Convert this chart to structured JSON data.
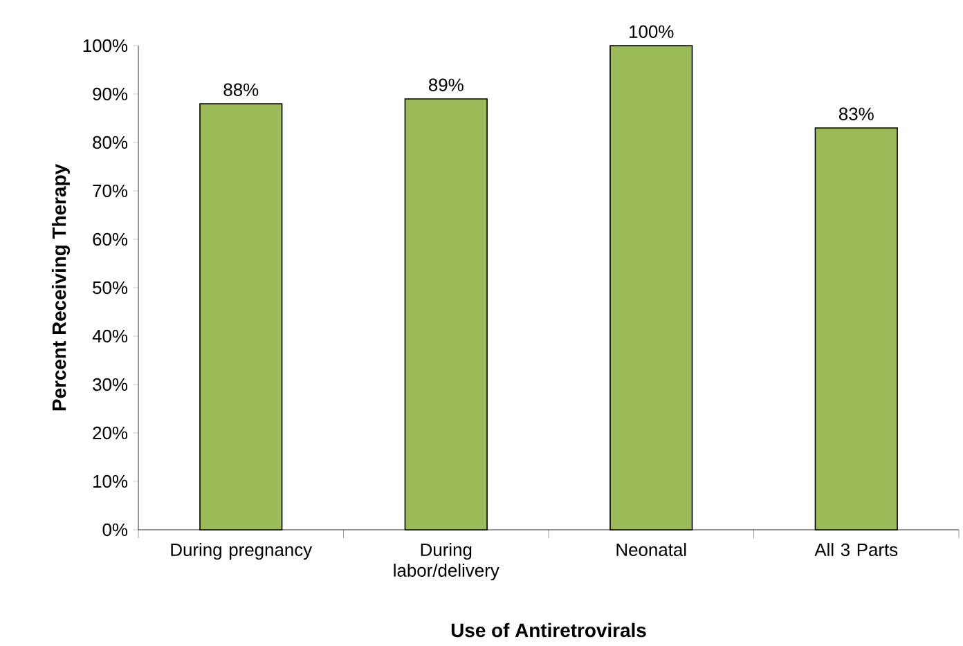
{
  "chart_data": {
    "type": "bar",
    "xlabel": "Use of Antiretrovirals",
    "ylabel": "Percent Receiving Therapy",
    "categories": [
      "During pregnancy",
      "During labor/delivery",
      "Neonatal",
      "All 3 Parts"
    ],
    "values": [
      88,
      89,
      100,
      83
    ],
    "value_labels": [
      "88%",
      "89%",
      "100%",
      "83%"
    ],
    "color": "#9bbb59",
    "ylim": [
      0,
      100
    ],
    "yticks": [
      {
        "value": 0,
        "label": "0%"
      },
      {
        "value": 10,
        "label": "10%"
      },
      {
        "value": 20,
        "label": "20%"
      },
      {
        "value": 30,
        "label": "30%"
      },
      {
        "value": 40,
        "label": "40%"
      },
      {
        "value": 50,
        "label": "50%"
      },
      {
        "value": 60,
        "label": "60%"
      },
      {
        "value": 70,
        "label": "70%"
      },
      {
        "value": 80,
        "label": "80%"
      },
      {
        "value": 90,
        "label": "90%"
      },
      {
        "value": 100,
        "label": "100%"
      }
    ],
    "grid": false
  }
}
